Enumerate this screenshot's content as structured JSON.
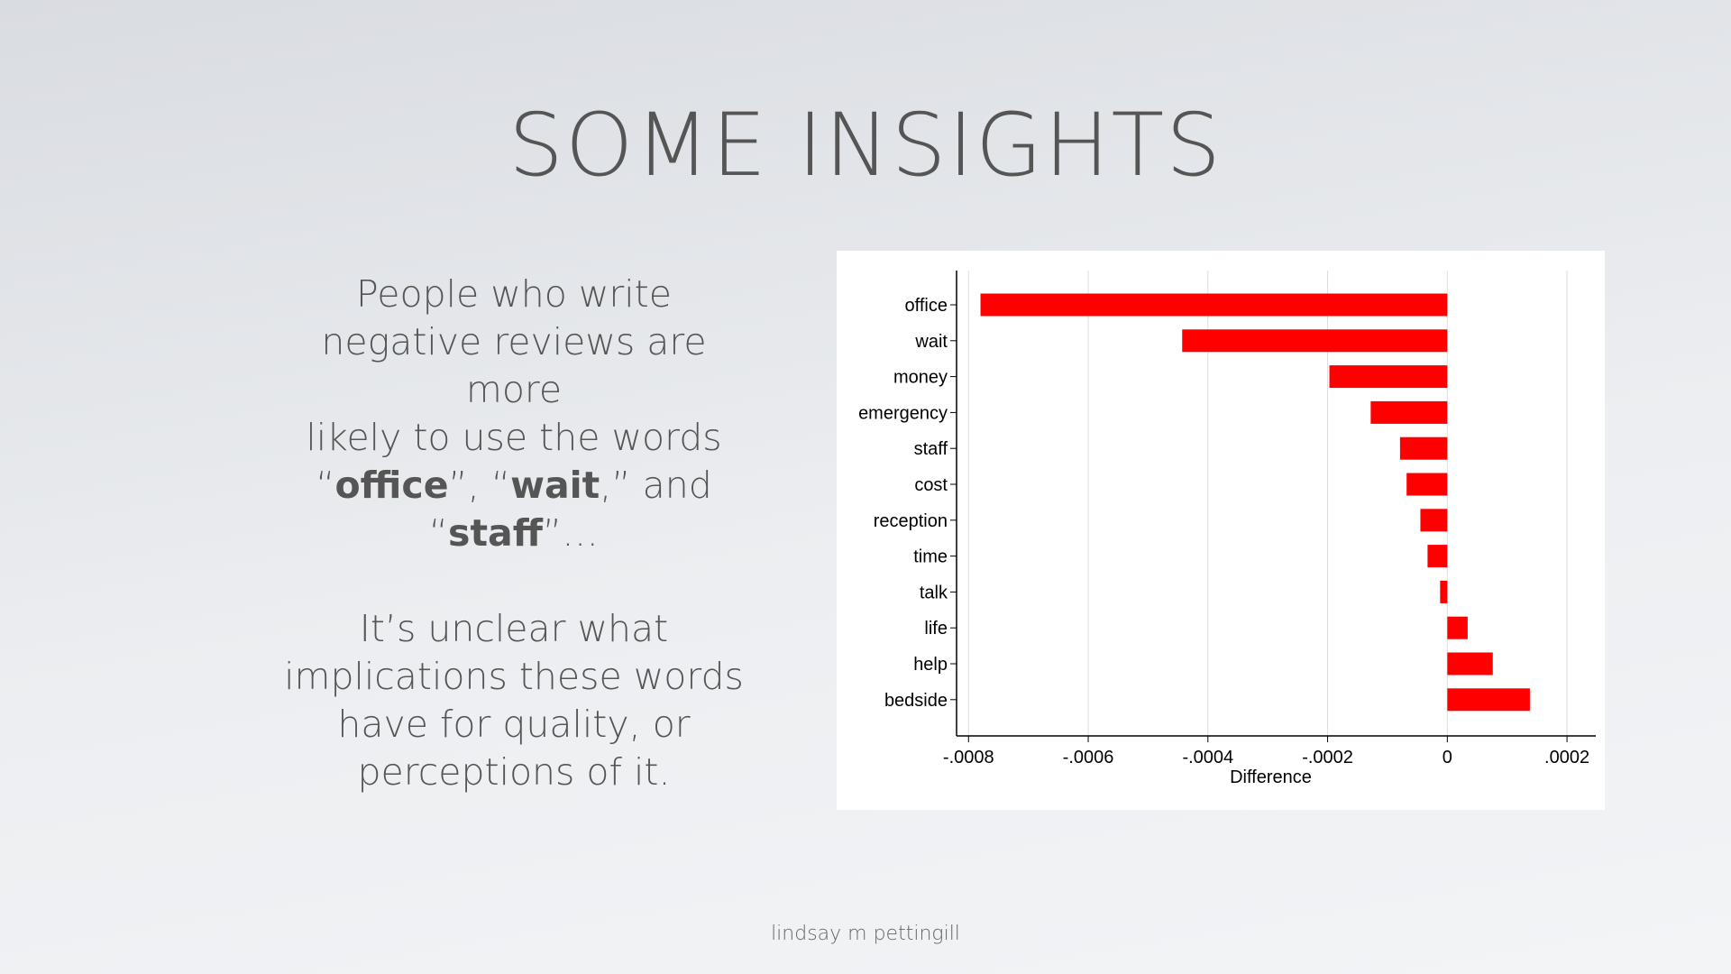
{
  "slide": {
    "title": "SOME INSIGHTS",
    "footer": "lindsay m pettingill"
  },
  "text": {
    "p1_line1": "People who write",
    "p1_line2": "negative reviews are more",
    "p1_line3": "likely to use the words",
    "q_open": "“",
    "word_office": "office",
    "sep1": "”, “",
    "word_wait": "wait",
    "sep2": ",” and",
    "q_open2": "“",
    "word_staff": "staff",
    "ending": "”…",
    "p2_line1": "It’s unclear what",
    "p2_line2": "implications these words",
    "p2_line3": "have for quality, or",
    "p2_line4": "perceptions of it."
  },
  "colors": {
    "bar": "#ff0000",
    "grid": "#dddddd",
    "axis": "#000000"
  },
  "chart_data": {
    "type": "bar",
    "orientation": "horizontal",
    "categories": [
      "office",
      "wait",
      "money",
      "emergency",
      "staff",
      "cost",
      "reception",
      "time",
      "talk",
      "life",
      "help",
      "bedside"
    ],
    "values": [
      -0.00078,
      -0.000443,
      -0.000197,
      -0.000128,
      -7.9e-05,
      -6.8e-05,
      -4.5e-05,
      -3.3e-05,
      -1.2e-05,
      3.4e-05,
      7.6e-05,
      0.000138
    ],
    "xlim": [
      -0.00082,
      0.00023
    ],
    "xticks": [
      -0.0008,
      -0.0006,
      -0.0004,
      -0.0002,
      0,
      0.0002
    ],
    "xtick_labels": [
      "-.0008",
      "-.0006",
      "-.0004",
      "-.0002",
      "0",
      ".0002"
    ],
    "xlabel": "Difference",
    "ylabel": "",
    "title": "",
    "grid": "vertical"
  }
}
